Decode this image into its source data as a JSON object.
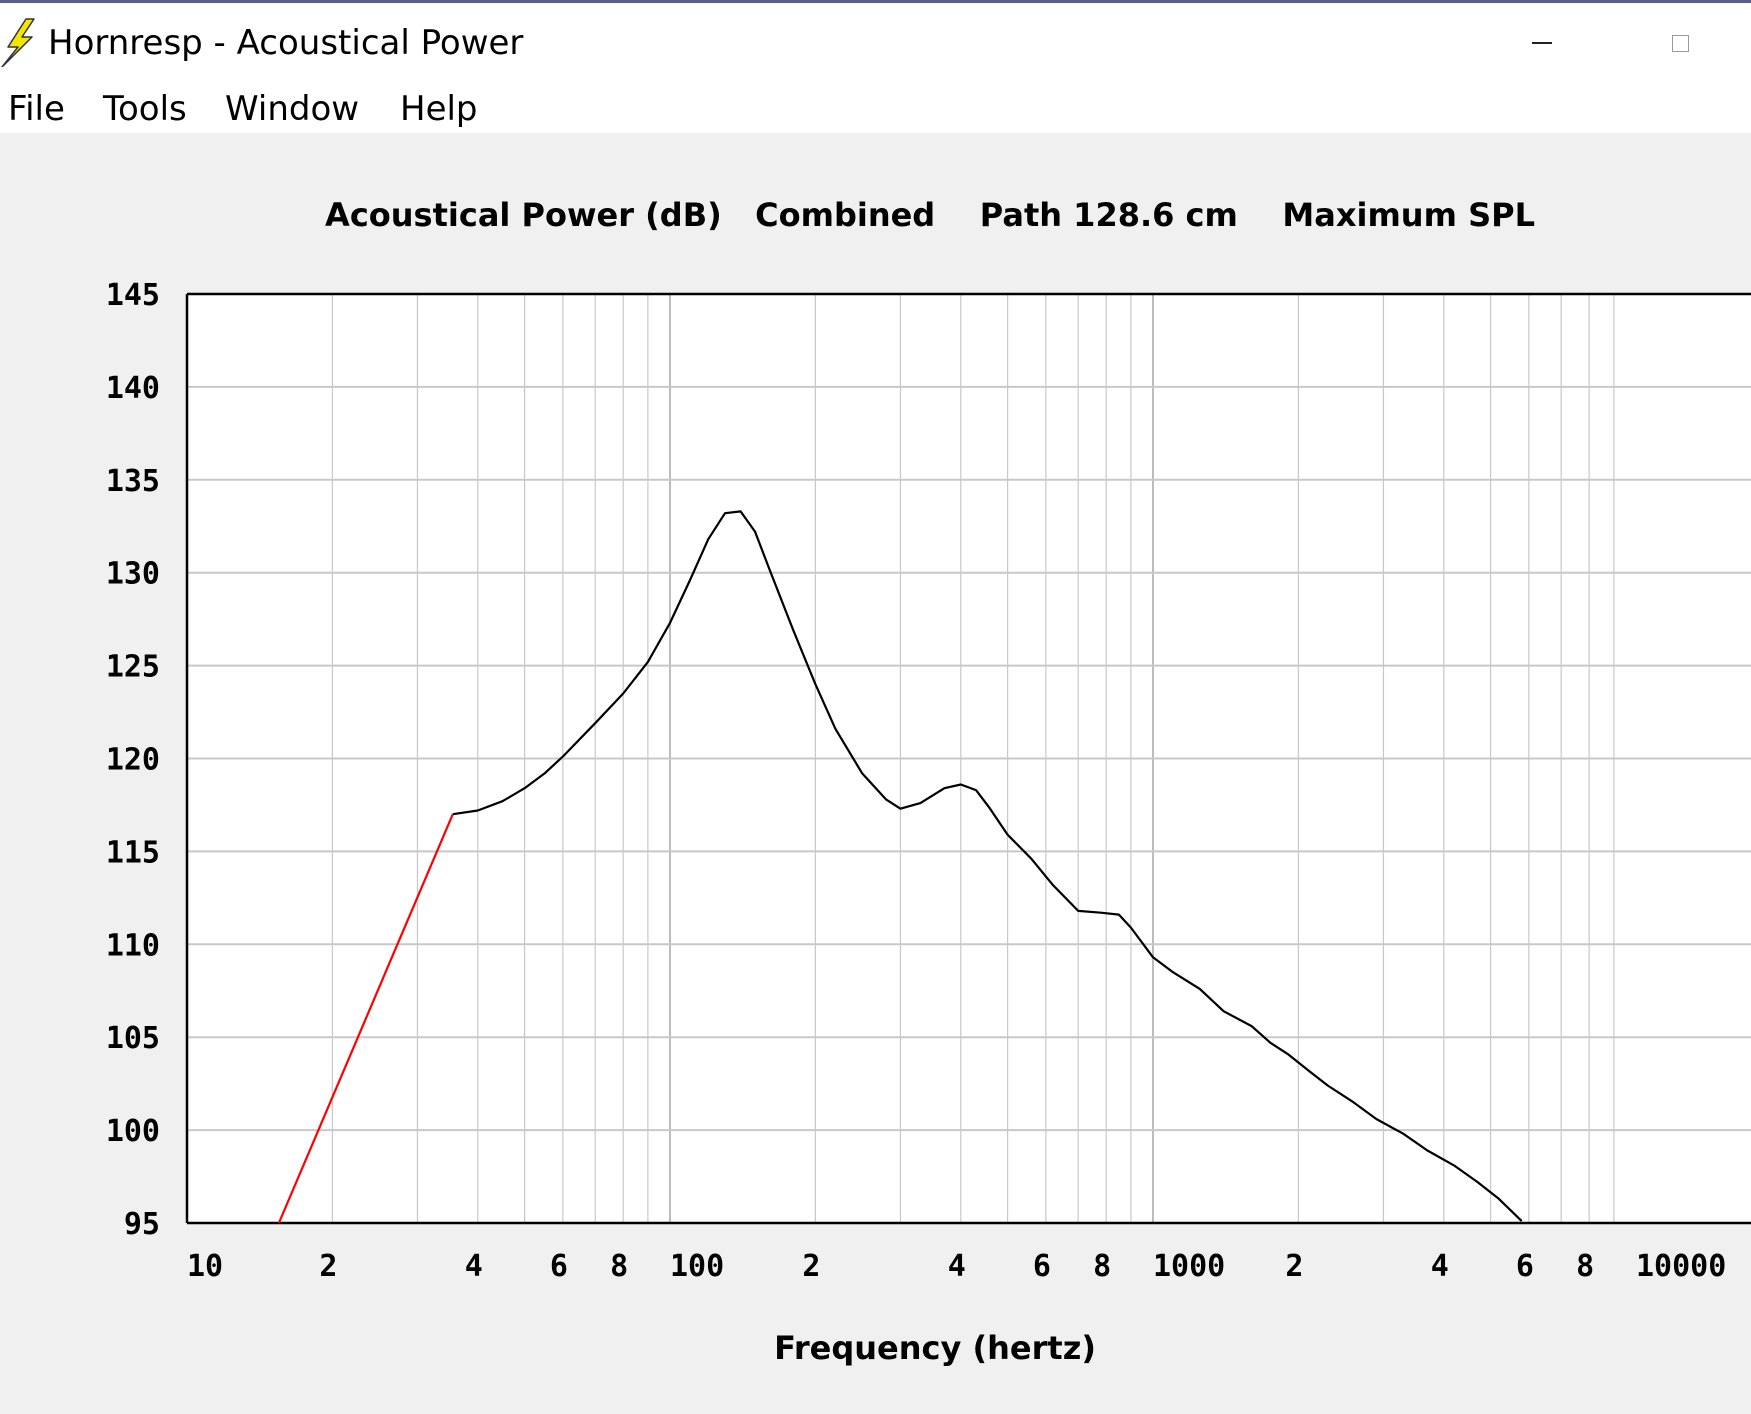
{
  "window": {
    "title": "Hornresp - Acoustical Power",
    "app_icon": "lightning-bolt-icon",
    "minimize_icon": "minimize-icon",
    "maximize_icon": "maximize-icon"
  },
  "menu": {
    "items": [
      {
        "label": "File"
      },
      {
        "label": "Tools"
      },
      {
        "label": "Window"
      },
      {
        "label": "Help"
      }
    ]
  },
  "colors": {
    "background": "#f0f0f0",
    "grid": "#c8c8c8",
    "curve": "#000000",
    "curve_low": "#ff0000",
    "icon": "#f5e600"
  },
  "chart_data": {
    "type": "line",
    "title": "Acoustical Power (dB)   Combined    Path 128.6 cm    Maximum SPL",
    "xlabel": "Frequency (hertz)",
    "ylabel": "",
    "xscale": "log",
    "xlim": [
      10,
      10000
    ],
    "ylim": [
      95,
      145
    ],
    "y_ticks": [
      "145",
      "140",
      "135",
      "130",
      "125",
      "120",
      "115",
      "110",
      "105",
      "100",
      "95"
    ],
    "x_tick_labels": [
      {
        "value": 10,
        "label": "10"
      },
      {
        "value": 20,
        "label": "2"
      },
      {
        "value": 40,
        "label": "4"
      },
      {
        "value": 60,
        "label": "6"
      },
      {
        "value": 80,
        "label": "8"
      },
      {
        "value": 100,
        "label": "100"
      },
      {
        "value": 200,
        "label": "2"
      },
      {
        "value": 400,
        "label": "4"
      },
      {
        "value": 600,
        "label": "6"
      },
      {
        "value": 800,
        "label": "8"
      },
      {
        "value": 1000,
        "label": "1000"
      },
      {
        "value": 2000,
        "label": "2"
      },
      {
        "value": 4000,
        "label": "4"
      },
      {
        "value": 6000,
        "label": "6"
      },
      {
        "value": 8000,
        "label": "8"
      },
      {
        "value": 10000,
        "label": "10000"
      }
    ],
    "grid": true,
    "series": [
      {
        "color": "#ff0000",
        "x": [
          15.5,
          35.5
        ],
        "y": [
          95,
          117
        ]
      },
      {
        "color": "#000000",
        "x": [
          35.5,
          40,
          45,
          50,
          55,
          60,
          70,
          80,
          90,
          100,
          110,
          120,
          130,
          140,
          150,
          160,
          180,
          200,
          220,
          250,
          280,
          300,
          330,
          370,
          400,
          430,
          460,
          500,
          560,
          620,
          700,
          780,
          850,
          900,
          1000,
          1100,
          1250,
          1400,
          1600,
          1750,
          1900,
          2100,
          2300,
          2600,
          2900,
          3300,
          3700,
          4200,
          4700,
          5200,
          5800
        ],
        "y": [
          117,
          117.2,
          117.7,
          118.4,
          119.2,
          120.1,
          121.9,
          123.5,
          125.2,
          127.3,
          129.6,
          131.8,
          133.2,
          133.3,
          132.2,
          130.3,
          126.9,
          124.0,
          121.6,
          119.2,
          117.8,
          117.3,
          117.6,
          118.4,
          118.6,
          118.3,
          117.3,
          115.9,
          114.6,
          113.2,
          111.8,
          111.7,
          111.6,
          110.9,
          109.3,
          108.5,
          107.6,
          106.4,
          105.6,
          104.7,
          104.1,
          103.2,
          102.4,
          101.5,
          100.6,
          99.8,
          98.9,
          98.1,
          97.2,
          96.3,
          95.1
        ]
      }
    ]
  }
}
